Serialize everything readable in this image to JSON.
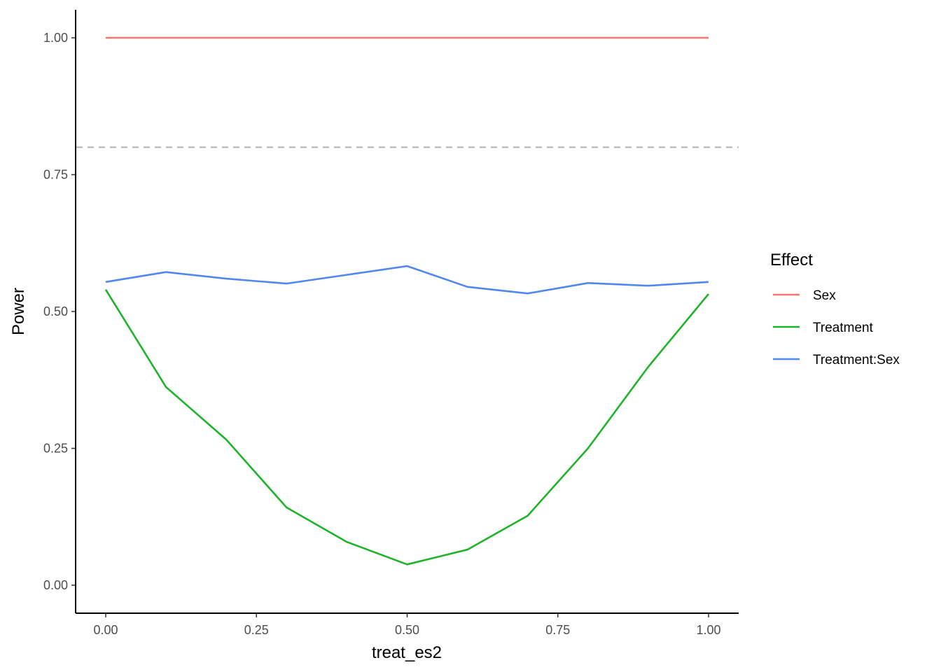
{
  "chart_data": {
    "type": "line",
    "xlabel": "treat_es2",
    "ylabel": "Power",
    "xlim": [
      -0.05,
      1.05
    ],
    "ylim": [
      -0.05,
      1.05
    ],
    "x_ticks": [
      0.0,
      0.25,
      0.5,
      0.75,
      1.0
    ],
    "x_tick_labels": [
      "0.00",
      "0.25",
      "0.50",
      "0.75",
      "1.00"
    ],
    "y_ticks": [
      0.0,
      0.25,
      0.5,
      0.75,
      1.0
    ],
    "y_tick_labels": [
      "0.00",
      "0.25",
      "0.50",
      "0.75",
      "1.00"
    ],
    "grid": false,
    "reference_line": {
      "y": 0.8,
      "style": "dashed",
      "color": "#b3b3b3"
    },
    "legend": {
      "title": "Effect",
      "placement": "right"
    },
    "x": [
      0.0,
      0.1,
      0.2,
      0.3,
      0.4,
      0.5,
      0.6,
      0.7,
      0.8,
      0.9,
      1.0
    ],
    "series": [
      {
        "name": "Sex",
        "color": "#F8766D",
        "values": [
          1.0,
          1.0,
          1.0,
          1.0,
          1.0,
          1.0,
          1.0,
          1.0,
          1.0,
          1.0,
          1.0
        ]
      },
      {
        "name": "Treatment",
        "color": "#1FB32B",
        "values": [
          0.54,
          0.362,
          0.266,
          0.142,
          0.079,
          0.038,
          0.065,
          0.127,
          0.25,
          0.399,
          0.532
        ]
      },
      {
        "name": "Treatment:Sex",
        "color": "#5088F0",
        "values": [
          0.554,
          0.572,
          0.56,
          0.551,
          0.567,
          0.583,
          0.545,
          0.533,
          0.552,
          0.547,
          0.554
        ]
      }
    ]
  }
}
